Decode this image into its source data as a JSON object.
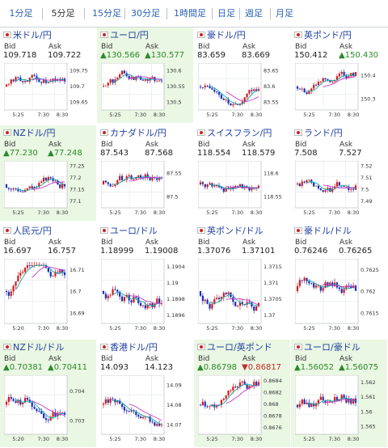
{
  "tabs": [
    "1分足",
    "5分足",
    "15分足",
    "30分足",
    "1時間足",
    "日足",
    "週足",
    "月足"
  ],
  "active_tab": "5分足",
  "cards": [
    {
      "title": "米ドル/円",
      "bid": "109.718",
      "ask": "109.722",
      "bid_dir": "none",
      "ask_dir": "none",
      "green": false,
      "yticks": [
        "109.75",
        "109.7",
        "109.65"
      ],
      "xticks": [
        "5:25",
        "7:30",
        "8:30"
      ]
    },
    {
      "title": "ユーロ/円",
      "bid": "▲130.566",
      "ask": "▲130.577",
      "bid_dir": "up",
      "ask_dir": "up",
      "green": true,
      "yticks": [
        "130.6",
        "130.55",
        "130.5"
      ],
      "xticks": [
        "5:25",
        "7:30",
        "8:30"
      ]
    },
    {
      "title": "豪ドル/円",
      "bid": "83.659",
      "ask": "83.669",
      "bid_dir": "none",
      "ask_dir": "none",
      "green": false,
      "yticks": [
        "83.65",
        "83.6",
        "83.55"
      ],
      "xticks": [
        "5:25",
        "7:30",
        "8:30"
      ]
    },
    {
      "title": "英ポンド/円",
      "bid": "150.412",
      "ask": "▲150.430",
      "bid_dir": "none",
      "ask_dir": "up",
      "green": false,
      "yticks": [
        "150.4",
        "150.3"
      ],
      "xticks": [
        "5:25",
        "7:30",
        "8:30"
      ]
    },
    {
      "title": "NZドル/円",
      "bid": "▲77.230",
      "ask": "▲77.248",
      "bid_dir": "up",
      "ask_dir": "up",
      "green": true,
      "yticks": [
        "77.25",
        "77.2",
        "77.15",
        "77.1"
      ],
      "xticks": [
        "5:25",
        "7:30",
        "8:30"
      ]
    },
    {
      "title": "カナダドル/円",
      "bid": "87.543",
      "ask": "87.568",
      "bid_dir": "none",
      "ask_dir": "none",
      "green": false,
      "yticks": [
        "87.55",
        "87.5"
      ],
      "xticks": [
        "5:25",
        "7:30",
        "8:30"
      ]
    },
    {
      "title": "スイスフラン/円",
      "bid": "118.554",
      "ask": "118.579",
      "bid_dir": "none",
      "ask_dir": "none",
      "green": false,
      "yticks": [
        "118.6",
        "118.55"
      ],
      "xticks": [
        "5:25",
        "7:30",
        "8:30"
      ]
    },
    {
      "title": "ランド/円",
      "bid": "7.508",
      "ask": "7.527",
      "bid_dir": "none",
      "ask_dir": "none",
      "green": false,
      "yticks": [
        "7.52",
        "7.51",
        "7.5",
        "7.49"
      ],
      "xticks": [
        "5:25",
        "7:30",
        "8:30"
      ]
    },
    {
      "title": "人民元/円",
      "bid": "16.697",
      "ask": "16.757",
      "bid_dir": "none",
      "ask_dir": "none",
      "green": false,
      "yticks": [
        "16.71",
        "16.7",
        "16.69"
      ],
      "xticks": [
        "5:20",
        "7:30",
        "8:30"
      ]
    },
    {
      "title": "ユーロ/ドル",
      "bid": "1.18999",
      "ask": "1.19008",
      "bid_dir": "none",
      "ask_dir": "none",
      "green": false,
      "yticks": [
        "1.1904",
        "1.19",
        "1.1898",
        "1.1896"
      ],
      "xticks": [
        "5:25",
        "7:30",
        "8:30"
      ]
    },
    {
      "title": "英ポンド/ドル",
      "bid": "1.37076",
      "ask": "1.37101",
      "bid_dir": "none",
      "ask_dir": "none",
      "green": false,
      "yticks": [
        "1.3715",
        "1.371",
        "1.3705",
        "1.37"
      ],
      "xticks": [
        "5:25",
        "7:30",
        "8:30"
      ]
    },
    {
      "title": "豪ドル/ドル",
      "bid": "0.76246",
      "ask": "0.76265",
      "bid_dir": "none",
      "ask_dir": "none",
      "green": false,
      "yticks": [
        "0.7625",
        "0.762",
        "0.7615"
      ],
      "xticks": [
        "5:25",
        "7:30",
        "8:30"
      ]
    },
    {
      "title": "NZドル/ドル",
      "bid": "▲0.70381",
      "ask": "▲0.70411",
      "bid_dir": "up",
      "ask_dir": "up",
      "green": true,
      "yticks": [
        "0.704",
        "0.703"
      ],
      "xticks": [
        "5:20",
        "7:30",
        "8:30"
      ]
    },
    {
      "title": "香港ドル/円",
      "bid": "14.093",
      "ask": "14.123",
      "bid_dir": "none",
      "ask_dir": "none",
      "green": false,
      "yticks": [
        "14.09",
        "14.08",
        "14.07"
      ],
      "xticks": [
        "5:25",
        "7:30",
        "8:30"
      ]
    },
    {
      "title": "ユーロ/英ポンド",
      "bid": "▲0.86798",
      "ask": "▼0.86817",
      "bid_dir": "up",
      "ask_dir": "down",
      "green": true,
      "yticks": [
        "0.8684",
        "0.8682",
        "0.868",
        "0.8678",
        "0.8676"
      ],
      "xticks": [
        "5:25",
        "7:30",
        "8:30"
      ]
    },
    {
      "title": "ユーロ/豪ドル",
      "bid": "▲1.56052",
      "ask": "▲1.56075",
      "bid_dir": "up",
      "ask_dir": "up",
      "green": true,
      "yticks": [
        "1.562",
        "1.561",
        "1.56",
        "1.565"
      ],
      "xticks": [
        "5:25",
        "7:30",
        "8:30"
      ]
    }
  ],
  "labels": {
    "bid": "Bid",
    "ask": "Ask"
  },
  "colors": {
    "candle_up": "#d21c1c",
    "candle_down": "#1c2fb8",
    "ma_short": "#13a5a5",
    "ma_long": "#c43bc4",
    "link": "#1f3fa0"
  }
}
